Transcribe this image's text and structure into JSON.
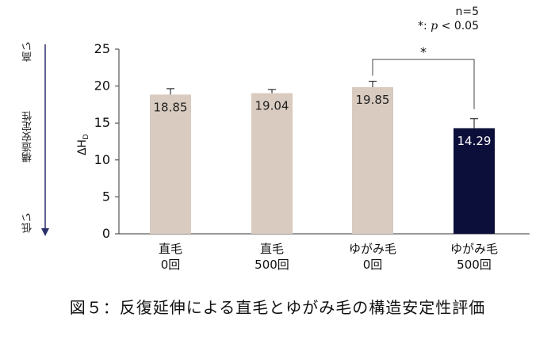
{
  "chart_data": {
    "type": "bar",
    "categories": [
      {
        "line1": "直毛",
        "line2": "0回"
      },
      {
        "line1": "直毛",
        "line2": "500回"
      },
      {
        "line1": "ゆがみ毛",
        "line2": "0回"
      },
      {
        "line1": "ゆがみ毛",
        "line2": "500回"
      }
    ],
    "values": [
      18.85,
      19.04,
      19.85,
      14.29
    ],
    "value_labels": [
      "18.85",
      "19.04",
      "19.85",
      "14.29"
    ],
    "error_plus": [
      0.8,
      0.5,
      0.8,
      1.3
    ],
    "bar_colors": [
      "#d9cbc0",
      "#d9cbc0",
      "#d9cbc0",
      "#0c0f3a"
    ],
    "label_colors": [
      "#222222",
      "#222222",
      "#222222",
      "#ffffff"
    ],
    "ylim": [
      0,
      25
    ],
    "yticks": [
      0,
      5,
      10,
      15,
      20,
      25
    ],
    "ylabel_main": "ΔH",
    "ylabel_sub": "D",
    "significance": {
      "from": 2,
      "to": 3,
      "marker": "*"
    },
    "notes": {
      "n": "n=5",
      "p_prefix": "*: ",
      "p_symbol": "p",
      "p_suffix": " < 0.05"
    },
    "side_labels": {
      "top": "高い",
      "middle": "構造安定性",
      "bottom": "低い"
    },
    "caption": "図５：反復延伸による直毛とゆがみ毛の構造安定性評価"
  }
}
